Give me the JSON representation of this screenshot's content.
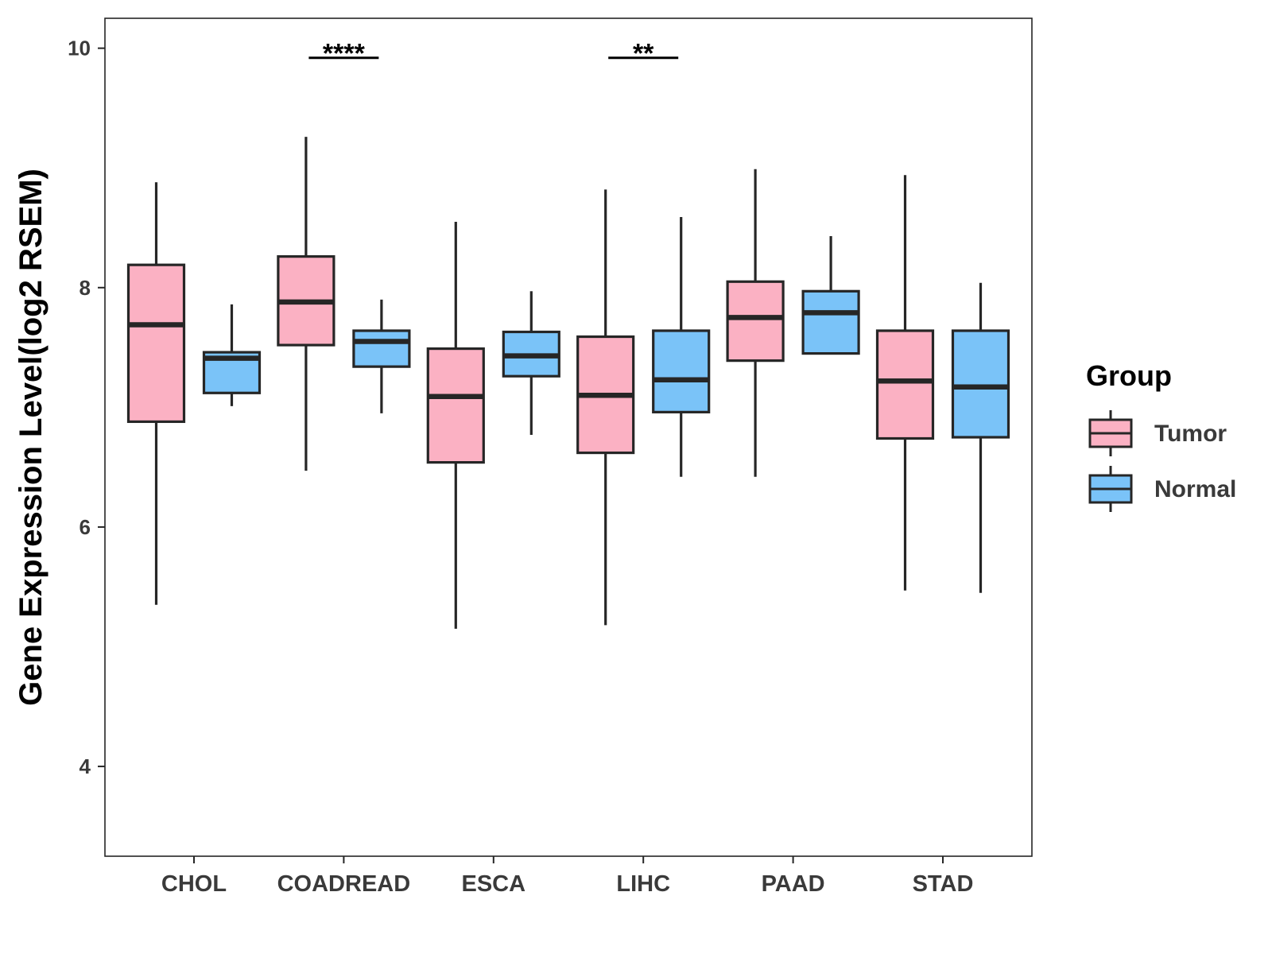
{
  "chart_data": {
    "type": "boxplot",
    "ylabel": "Gene Expression Level(log2 RSEM)",
    "xlabel": "",
    "ylim": [
      3.25,
      10.25
    ],
    "yticks": [
      4,
      6,
      8,
      10
    ],
    "ytick_labels": [
      "4",
      "6",
      "8",
      "10"
    ],
    "categories": [
      "CHOL",
      "COADREAD",
      "ESCA",
      "LIHC",
      "PAAD",
      "STAD"
    ],
    "legend": {
      "title": "Group",
      "position": "right"
    },
    "series": [
      {
        "name": "Tumor",
        "color": "#FBB1C3",
        "boxes": [
          {
            "min": 5.35,
            "q1": 6.88,
            "median": 7.69,
            "q3": 8.19,
            "max": 8.88
          },
          {
            "min": 6.47,
            "q1": 7.52,
            "median": 7.88,
            "q3": 8.26,
            "max": 9.26
          },
          {
            "min": 5.15,
            "q1": 6.54,
            "median": 7.09,
            "q3": 7.49,
            "max": 8.55
          },
          {
            "min": 5.18,
            "q1": 6.62,
            "median": 7.1,
            "q3": 7.59,
            "max": 8.82
          },
          {
            "min": 6.42,
            "q1": 7.39,
            "median": 7.75,
            "q3": 8.05,
            "max": 8.99
          },
          {
            "min": 5.47,
            "q1": 6.74,
            "median": 7.22,
            "q3": 7.64,
            "max": 8.94
          }
        ]
      },
      {
        "name": "Normal",
        "color": "#7AC3F8",
        "boxes": [
          {
            "min": 7.01,
            "q1": 7.12,
            "median": 7.41,
            "q3": 7.46,
            "max": 7.86
          },
          {
            "min": 6.95,
            "q1": 7.34,
            "median": 7.55,
            "q3": 7.64,
            "max": 7.9
          },
          {
            "min": 6.77,
            "q1": 7.26,
            "median": 7.43,
            "q3": 7.63,
            "max": 7.97
          },
          {
            "min": 6.42,
            "q1": 6.96,
            "median": 7.23,
            "q3": 7.64,
            "max": 8.59
          },
          {
            "min": 7.45,
            "q1": 7.45,
            "median": 7.79,
            "q3": 7.97,
            "max": 8.43
          },
          {
            "min": 5.45,
            "q1": 6.75,
            "median": 7.17,
            "q3": 7.64,
            "max": 8.04
          }
        ]
      }
    ],
    "annotations": [
      {
        "category": "COADREAD",
        "text": "****",
        "y": 9.92
      },
      {
        "category": "LIHC",
        "text": "**",
        "y": 9.92
      }
    ]
  }
}
